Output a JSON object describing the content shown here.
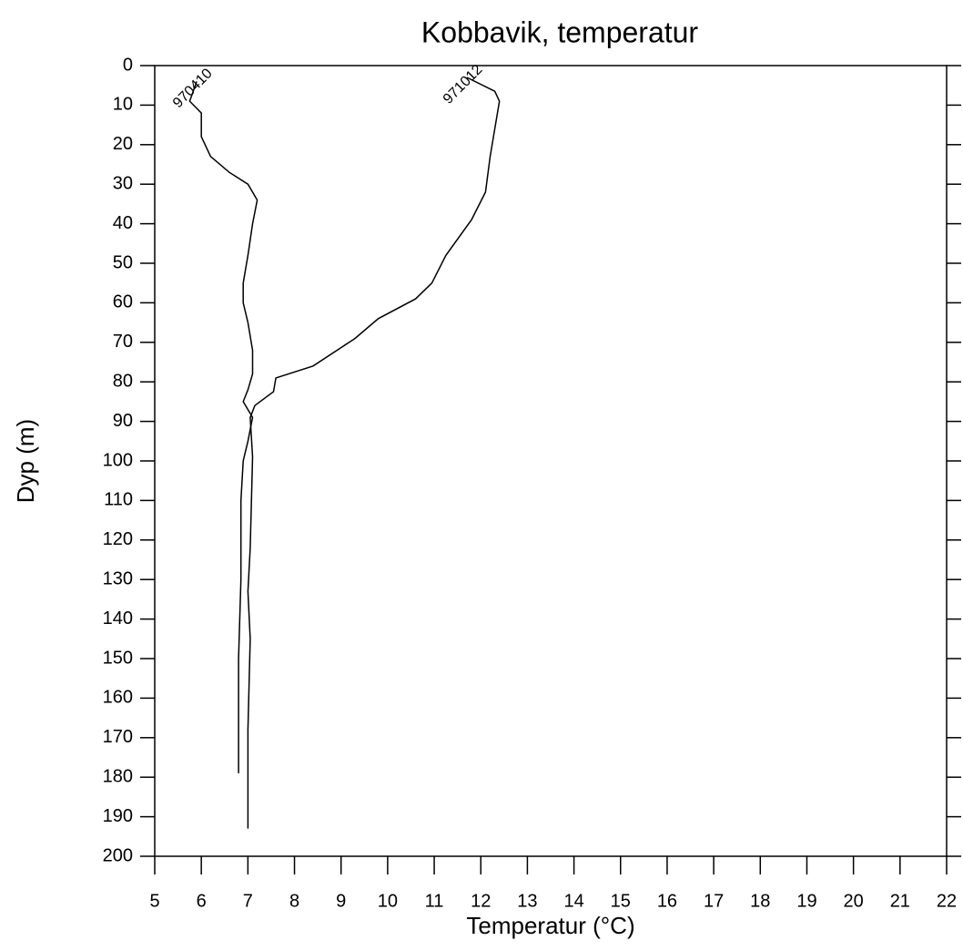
{
  "chart_data": {
    "type": "line",
    "title": "Kobbavik, temperatur",
    "xlabel": "Temperatur (°C)",
    "ylabel": "Dyp (m)",
    "xlim": [
      5,
      22
    ],
    "xticks": [
      5,
      6,
      7,
      8,
      9,
      10,
      11,
      12,
      13,
      14,
      15,
      16,
      17,
      18,
      19,
      20,
      21,
      22
    ],
    "ylim": [
      0,
      200
    ],
    "yticks": [
      0,
      10,
      20,
      30,
      40,
      50,
      60,
      70,
      80,
      90,
      100,
      110,
      120,
      130,
      140,
      150,
      160,
      170,
      180,
      190,
      200
    ],
    "y_inverted": true,
    "grid": false,
    "series": [
      {
        "name": "970410",
        "color": "#000000",
        "x": [
          5.9,
          5.75,
          6.0,
          6.0,
          6.2,
          6.6,
          7.0,
          7.2,
          7.1,
          7.0,
          6.9,
          6.9,
          7.0,
          7.1,
          7.1,
          7.0,
          6.9,
          7.1,
          7.0,
          6.9,
          6.85,
          6.85,
          6.8,
          6.8
        ],
        "values": [
          4,
          9,
          12,
          18,
          23,
          27,
          30,
          34,
          40,
          48,
          55,
          60,
          65,
          72,
          78,
          82,
          85,
          89,
          95,
          100,
          110,
          130,
          150,
          179
        ]
      },
      {
        "name": "971012",
        "color": "#000000",
        "x": [
          11.7,
          12.3,
          12.4,
          12.3,
          12.2,
          12.1,
          11.8,
          11.25,
          10.95,
          10.6,
          9.8,
          9.3,
          8.4,
          7.6,
          7.55,
          7.15,
          7.05,
          7.1,
          7.05,
          7.0,
          7.05,
          7.0,
          7.0
        ],
        "values": [
          3,
          6.5,
          9,
          16,
          23,
          32,
          39,
          48,
          55,
          59,
          64,
          69,
          76,
          79,
          82.5,
          86,
          89,
          99,
          122,
          133,
          145,
          168,
          193
        ]
      }
    ]
  }
}
